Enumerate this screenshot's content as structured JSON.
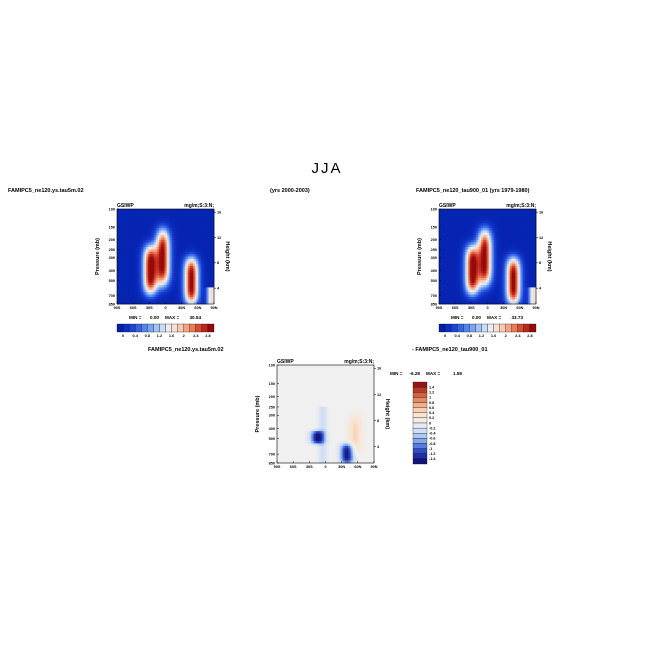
{
  "season": "JJA",
  "header": {
    "left_case": "FAMIPC5_ne120.ys.tau5m.02",
    "left_years": "(yrs 2000-2003)",
    "right_case": "FAMIPC5_ne120_tau900_01 (yrs 1979-1980)",
    "diff_title": "FAMIPC5_ne120.ys.tau5m.02",
    "diff_title_right": "- FAMIPC5_ne120_tau900_01"
  },
  "chart_data": [
    {
      "type": "heatmap",
      "title": "FAMIPC5_ne120.ys.tau5m.02",
      "variable": "GSIWP",
      "units": "mg/m;S:3:N;",
      "ylabel": "Pressure (mb)",
      "ylabel_right": "Height (km)",
      "x_ticks": [
        "90S",
        "60S",
        "30S",
        "0",
        "30N",
        "60N",
        "90N"
      ],
      "y_ticks": [
        "100",
        "150",
        "200",
        "250",
        "300",
        "400",
        "500",
        "700",
        "850"
      ],
      "y_right_ticks": [
        "16",
        "12",
        "8",
        "4"
      ],
      "min_label": "MIN =",
      "min_value": "0.00",
      "max_label": "MAX =",
      "max_value": "30.54",
      "colorbar_labels": [
        "0",
        "0.4",
        "0.8",
        "1.2",
        "1.6",
        "2",
        "2.4",
        "2.8"
      ],
      "features": [
        {
          "lat": -28,
          "p_top": 230,
          "p_bottom": 680,
          "peak": 3.0
        },
        {
          "lat": -5,
          "p_top": 160,
          "p_bottom": 560,
          "peak": 2.9
        },
        {
          "lat": 48,
          "p_top": 300,
          "p_bottom": 860,
          "peak": 3.0
        }
      ]
    },
    {
      "type": "heatmap",
      "title": "FAMIPC5_ne120_tau900_01 (yrs 1979-1980)",
      "variable": "GSIWP",
      "units": "mg/m;S:3:N;",
      "ylabel": "Pressure (mb)",
      "ylabel_right": "Height (km)",
      "x_ticks": [
        "90S",
        "60S",
        "30S",
        "0",
        "30N",
        "60N",
        "90N"
      ],
      "y_ticks": [
        "100",
        "150",
        "200",
        "250",
        "300",
        "400",
        "500",
        "700",
        "850"
      ],
      "y_right_ticks": [
        "16",
        "12",
        "8",
        "4"
      ],
      "min_label": "MIN =",
      "min_value": "0.00",
      "max_label": "MAX =",
      "max_value": "33.73",
      "colorbar_labels": [
        "0",
        "0.4",
        "0.8",
        "1.2",
        "1.6",
        "2",
        "2.4",
        "2.8"
      ],
      "features": [
        {
          "lat": -28,
          "p_top": 230,
          "p_bottom": 680,
          "peak": 3.0
        },
        {
          "lat": -5,
          "p_top": 160,
          "p_bottom": 560,
          "peak": 2.9
        },
        {
          "lat": 48,
          "p_top": 300,
          "p_bottom": 860,
          "peak": 3.0
        }
      ]
    },
    {
      "type": "heatmap",
      "title": "FAMIPC5_ne120.ys.tau5m.02 - FAMIPC5_ne120_tau900_01",
      "variable": "GSIWP",
      "units": "mg/m;S:3:N;",
      "ylabel": "Pressure (mb)",
      "ylabel_right": "Height (km)",
      "x_ticks": [
        "90S",
        "60S",
        "30S",
        "0",
        "30N",
        "60N",
        "90N"
      ],
      "y_ticks": [
        "100",
        "150",
        "200",
        "250",
        "300",
        "400",
        "500",
        "700",
        "850"
      ],
      "y_right_ticks": [
        "16",
        "12",
        "8",
        "4"
      ],
      "min_label": "MIN =",
      "min_value": "-6.28",
      "max_label": "MAX =",
      "max_value": "1.59",
      "colorbar_labels": [
        "1.4",
        "1.2",
        "1",
        "0.8",
        "0.6",
        "0.4",
        "0.2",
        "0",
        "-0.2",
        "-0.4",
        "-0.6",
        "-0.8",
        "-1",
        "-1.2",
        "-1.4"
      ],
      "features": [
        {
          "lat": -15,
          "p_top": 420,
          "p_bottom": 560,
          "value": -1.6
        },
        {
          "lat": 40,
          "p_top": 560,
          "p_bottom": 860,
          "value": -1.6
        },
        {
          "lat": 55,
          "p_top": 300,
          "p_bottom": 700,
          "value": 0.5
        }
      ]
    }
  ]
}
